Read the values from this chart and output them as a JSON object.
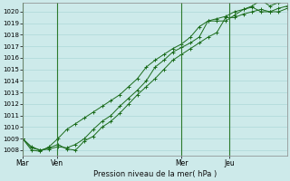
{
  "title": "Pression niveau de la mer( hPa )",
  "ylabel_values": [
    1008,
    1009,
    1010,
    1011,
    1012,
    1013,
    1014,
    1015,
    1016,
    1017,
    1018,
    1019,
    1020
  ],
  "ylim": [
    1007.5,
    1020.8
  ],
  "background_color": "#cdeaea",
  "grid_major_color": "#add8d8",
  "grid_minor_color": "#bde4e4",
  "line_color": "#1a6b1a",
  "x_ticks_labels": [
    "Mar",
    "Ven",
    "Mer",
    "Jeu"
  ],
  "x_ticks_pos": [
    0,
    0.13,
    0.6,
    0.78
  ],
  "xlim": [
    0,
    1.0
  ],
  "vertical_lines": [
    0.0,
    0.13,
    0.6,
    0.78
  ],
  "series": [
    [
      1009.0,
      1008.2,
      1008.0,
      1008.2,
      1008.5,
      1008.1,
      1008.0,
      1008.8,
      1009.2,
      1010.0,
      1010.5,
      1011.2,
      1012.0,
      1012.8,
      1013.5,
      1014.2,
      1015.0,
      1015.8,
      1016.3,
      1016.8,
      1017.3,
      1017.8,
      1018.2,
      1019.5,
      1019.5,
      1019.8,
      1020.0,
      1020.2,
      1020.0,
      1020.0,
      1020.3
    ],
    [
      1009.0,
      1008.3,
      1008.0,
      1008.1,
      1008.3,
      1008.2,
      1008.5,
      1009.0,
      1009.8,
      1010.5,
      1011.0,
      1011.8,
      1012.5,
      1013.2,
      1014.0,
      1015.2,
      1015.8,
      1016.5,
      1016.9,
      1017.3,
      1017.8,
      1019.2,
      1019.4,
      1019.6,
      1020.0,
      1020.2,
      1020.4,
      1020.0,
      1020.0,
      1020.3,
      1020.5
    ],
    [
      1009.0,
      1008.0,
      1007.9,
      1008.3,
      1009.0,
      1009.8,
      1010.3,
      1010.8,
      1011.3,
      1011.8,
      1012.3,
      1012.8,
      1013.5,
      1014.2,
      1015.2,
      1015.8,
      1016.3,
      1016.8,
      1017.2,
      1017.8,
      1018.7,
      1019.2,
      1019.2,
      1019.2,
      1019.7,
      1020.2,
      1020.5,
      1021.0,
      1020.5,
      1020.8,
      1021.0
    ]
  ]
}
